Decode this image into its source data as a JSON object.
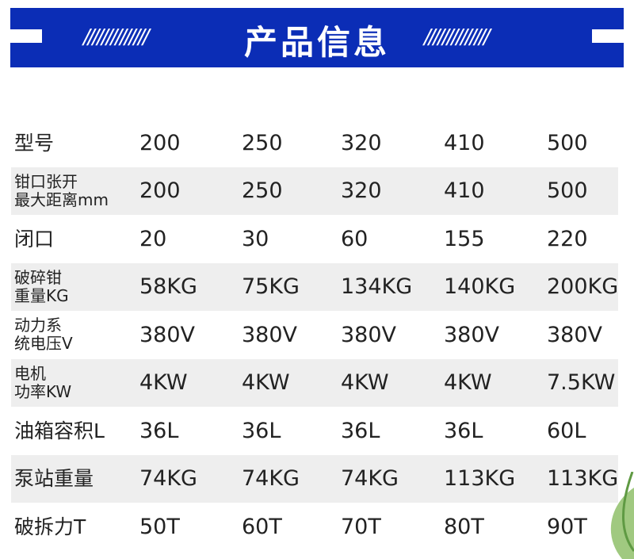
{
  "banner": {
    "title": "产品信息",
    "decor": "//////////////",
    "color": "#0b2db6"
  },
  "table": {
    "rows": [
      {
        "label": "型号",
        "values": [
          "200",
          "250",
          "320",
          "410",
          "500"
        ]
      },
      {
        "label": "钳口张开\n最大距离mm",
        "values": [
          "200",
          "250",
          "320",
          "410",
          "500"
        ]
      },
      {
        "label": "闭口",
        "values": [
          "20",
          "30",
          "60",
          "155",
          "220"
        ]
      },
      {
        "label": "破碎钳\n重量KG",
        "values": [
          "58KG",
          "75KG",
          "134KG",
          "140KG",
          "200KG"
        ]
      },
      {
        "label": "动力系\n统电压V",
        "values": [
          "380V",
          "380V",
          "380V",
          "380V",
          "380V"
        ]
      },
      {
        "label": "电机\n功率KW",
        "values": [
          "4KW",
          "4KW",
          "4KW",
          "4KW",
          "7.5KW"
        ]
      },
      {
        "label": "油箱容积L",
        "values": [
          "36L",
          "36L",
          "36L",
          "36L",
          "60L"
        ]
      },
      {
        "label": "泵站重量",
        "values": [
          "74KG",
          "74KG",
          "74KG",
          "113KG",
          "113KG"
        ]
      },
      {
        "label": "破拆力T",
        "values": [
          "50T",
          "60T",
          "70T",
          "80T",
          "90T"
        ]
      }
    ]
  }
}
